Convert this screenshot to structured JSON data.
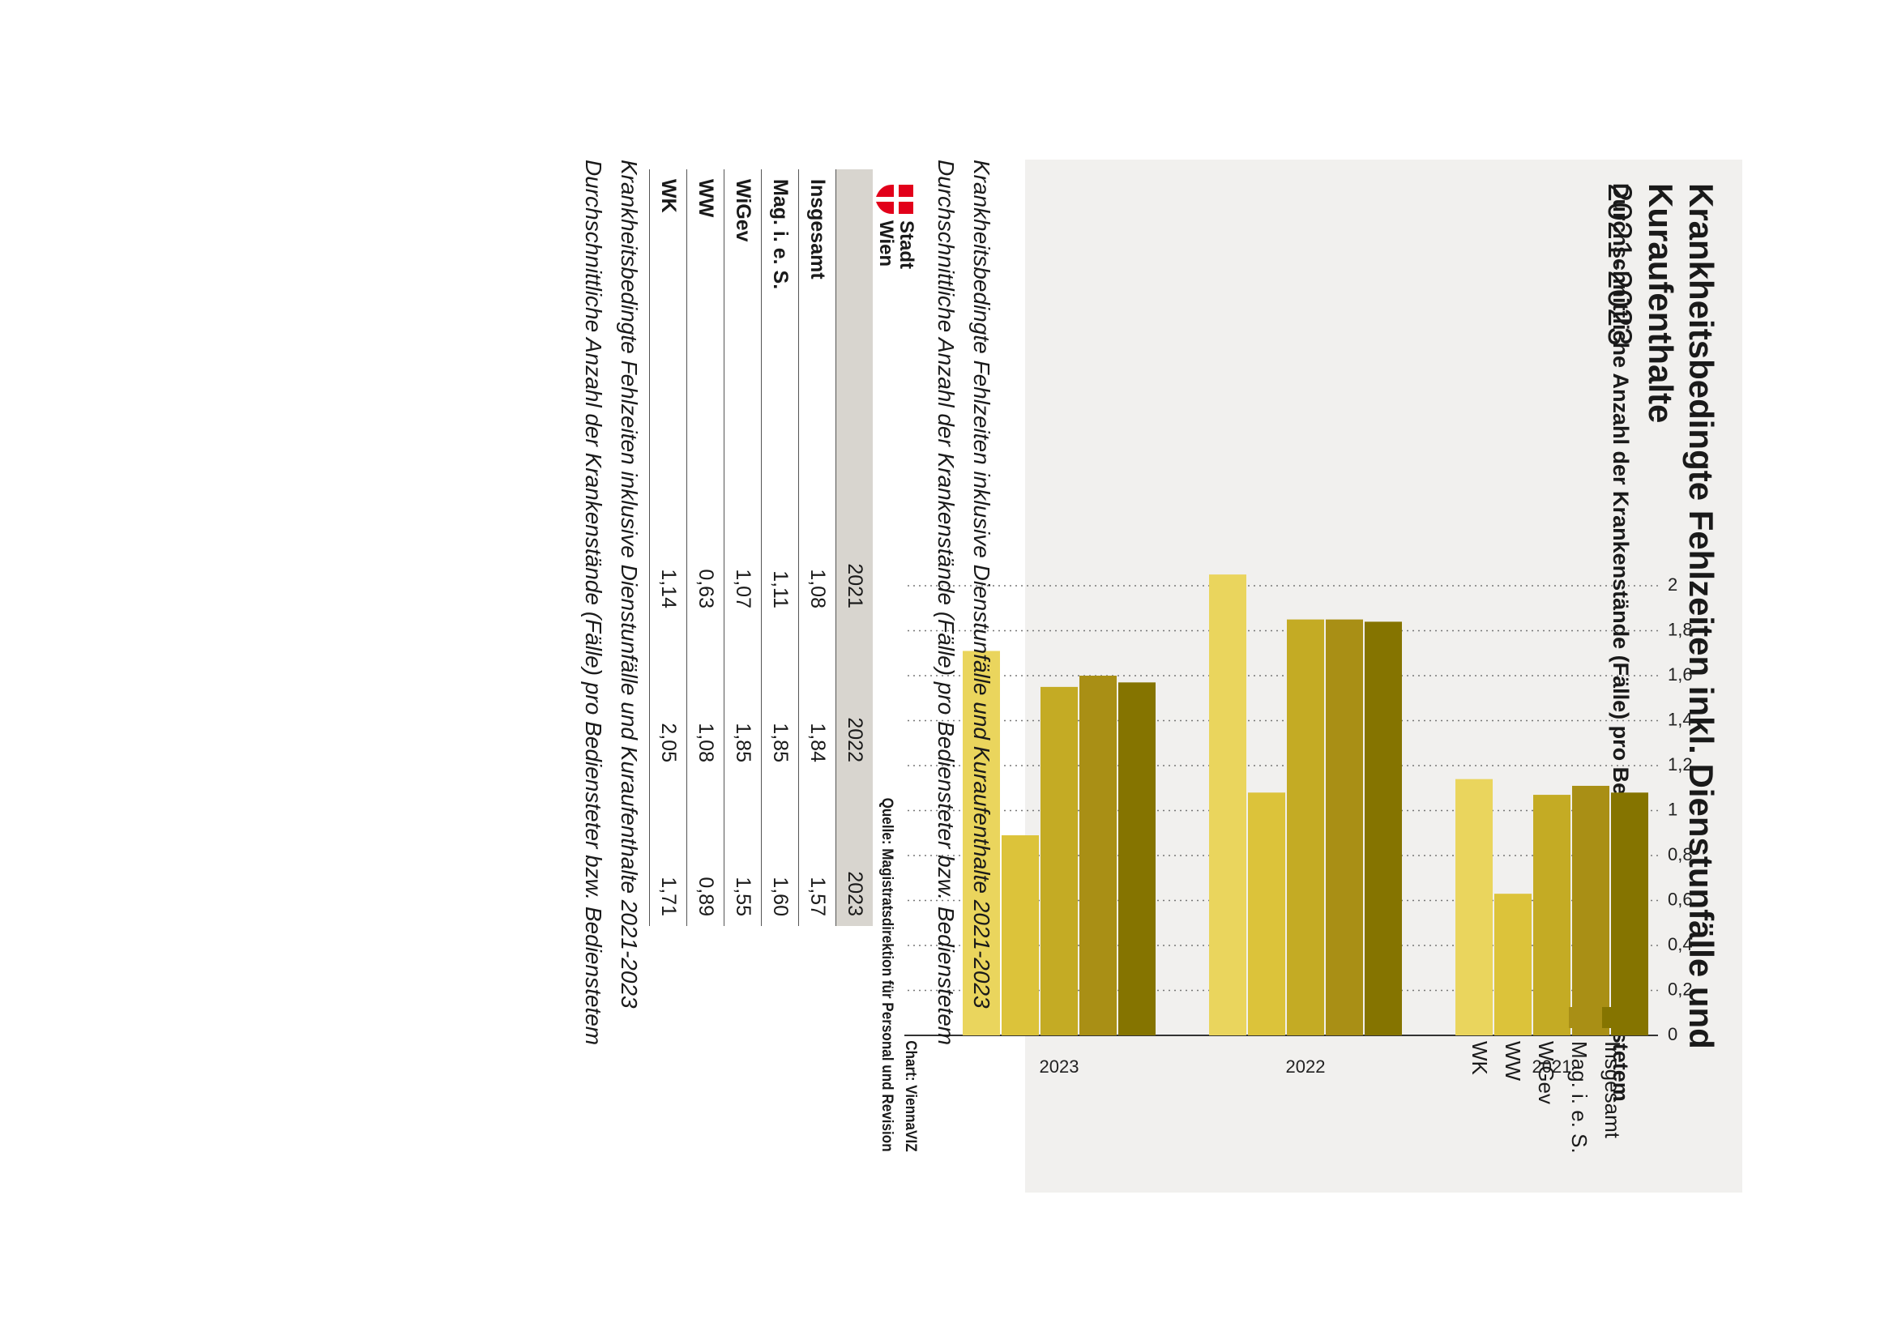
{
  "title": "Krankheitsbedingte Fehlzeiten inkl. Dienstunfälle und Kuraufenthalte",
  "title_years": "2021-2023",
  "chart_data": {
    "type": "bar",
    "title": "Krankheitsbedingte Fehlzeiten inkl. Dienstunfälle und Kuraufenthalte 2021-2023",
    "subtitle": "Durchschnittliche Anzahl der Krankenstände (Fälle) pro Bediensteter bzw. Bedienstetem",
    "categories": [
      "2021",
      "2022",
      "2023"
    ],
    "series": [
      {
        "name": "Insgesamt",
        "values": [
          1.08,
          1.84,
          1.57
        ],
        "color": "#857400"
      },
      {
        "name": "Mag. i. e. S.",
        "values": [
          1.11,
          1.85,
          1.6
        ],
        "color": "#a98f15"
      },
      {
        "name": "WiGev",
        "values": [
          1.07,
          1.85,
          1.55
        ],
        "color": "#c4ab24"
      },
      {
        "name": "WW",
        "values": [
          0.63,
          1.08,
          0.89
        ],
        "color": "#dcc33a"
      },
      {
        "name": "WK",
        "values": [
          1.14,
          2.05,
          1.71
        ],
        "color": "#ead55d"
      }
    ],
    "yticks": [
      "0",
      "0,2",
      "0,4",
      "0,6",
      "0,8",
      "1",
      "1,2",
      "1,4",
      "1,6",
      "1,8",
      "2"
    ],
    "ylim": [
      0,
      2
    ],
    "grid": true,
    "legend": "top-right"
  },
  "source": {
    "chart": "Chart: ViennaVIZ",
    "quelle": "Quelle: Magistratsdirektion für Personal und Revision"
  },
  "logo": {
    "line1": "Stadt",
    "line2": "Wien"
  },
  "captions": [
    {
      "line1": "Krankheitsbedingte Fehlzeiten inklusive Dienstunfälle und Kuraufenthalte 2021-2023",
      "line2": "Durchschnittliche Anzahl der Krankenstände (Fälle) pro Bediensteter bzw. Bedienstetem"
    },
    {
      "line1": "Krankheitsbedingte Fehlzeiten inklusive Dienstunfälle und Kuraufenthalte 2021-2023",
      "line2": "Durchschnittliche Anzahl der Krankenstände (Fälle) pro Bediensteter bzw. Bedienstetem"
    }
  ],
  "table": {
    "headers": [
      "",
      "2021",
      "2022",
      "2023"
    ],
    "rows": [
      {
        "label": "Insgesamt",
        "values": [
          "1,08",
          "1,84",
          "1,57"
        ]
      },
      {
        "label": "Mag. i. e. S.",
        "values": [
          "1,11",
          "1,85",
          "1,60"
        ]
      },
      {
        "label": "WiGev",
        "values": [
          "1,07",
          "1,85",
          "1,55"
        ]
      },
      {
        "label": "WW",
        "values": [
          "0,63",
          "1,08",
          "0,89"
        ]
      },
      {
        "label": "WK",
        "values": [
          "1,14",
          "2,05",
          "1,71"
        ]
      }
    ]
  }
}
